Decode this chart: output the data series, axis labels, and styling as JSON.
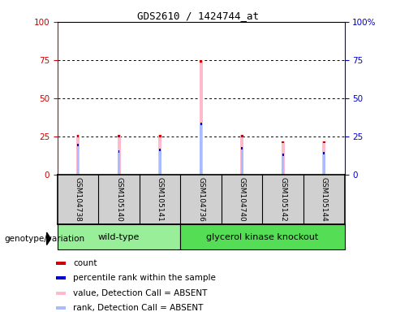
{
  "title": "GDS2610 / 1424744_at",
  "samples": [
    "GSM104738",
    "GSM105140",
    "GSM105141",
    "GSM104736",
    "GSM104740",
    "GSM105142",
    "GSM105144"
  ],
  "wt_indices": [
    0,
    1,
    2
  ],
  "gk_indices": [
    3,
    4,
    5,
    6
  ],
  "group_labels": [
    "wild-type",
    "glycerol kinase knockout"
  ],
  "group_colors": [
    "#99ee99",
    "#55dd55"
  ],
  "pink_heights": [
    26,
    26,
    26,
    75,
    26,
    22,
    22
  ],
  "blue_heights": [
    20,
    16,
    17,
    34,
    18,
    14,
    15
  ],
  "ylim": [
    0,
    100
  ],
  "yticks": [
    0,
    25,
    50,
    75,
    100
  ],
  "left_color": "#cc0000",
  "right_color": "#0000cc",
  "sample_box_color": "#d0d0d0",
  "pink_color": "#ffbbcc",
  "blue_color": "#aabbff",
  "red_color": "#cc0000",
  "darkblue_color": "#0000cc",
  "legend_labels": [
    "count",
    "percentile rank within the sample",
    "value, Detection Call = ABSENT",
    "rank, Detection Call = ABSENT"
  ],
  "legend_colors": [
    "#cc0000",
    "#0000cc",
    "#ffbbcc",
    "#aabbff"
  ]
}
